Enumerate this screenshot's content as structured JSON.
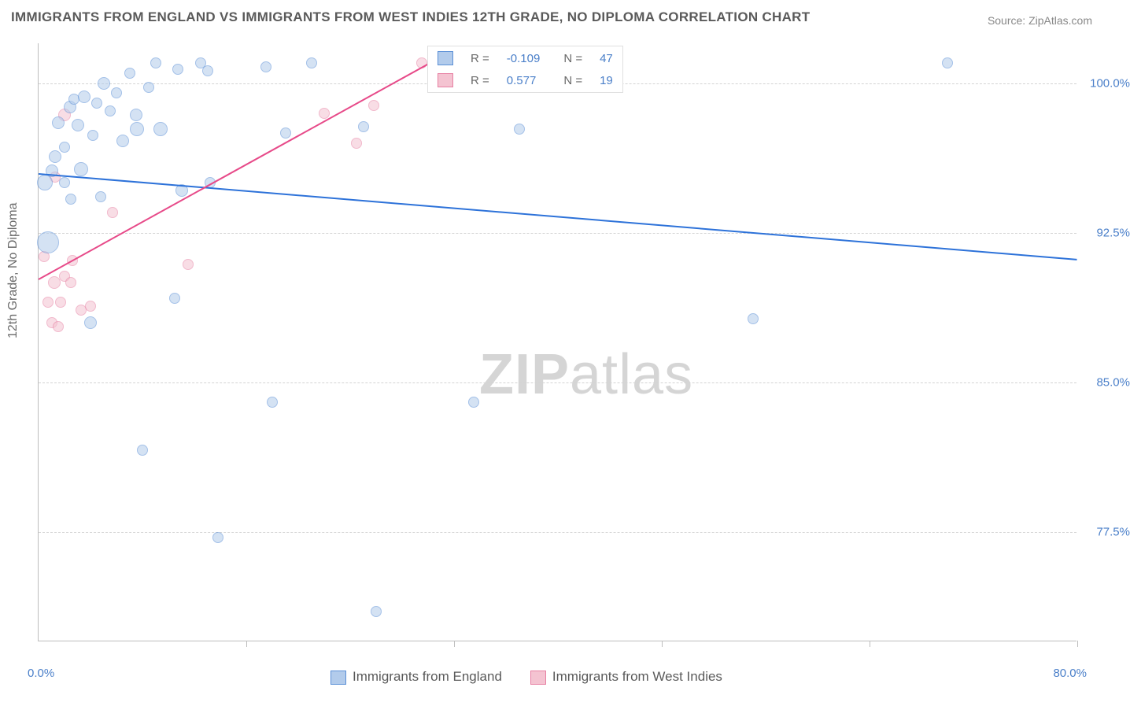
{
  "title": "IMMIGRANTS FROM ENGLAND VS IMMIGRANTS FROM WEST INDIES 12TH GRADE, NO DIPLOMA CORRELATION CHART",
  "source_text": "Source: ZipAtlas.com",
  "ylabel": "12th Grade, No Diploma",
  "watermark": {
    "bold": "ZIP",
    "rest": "atlas"
  },
  "chart": {
    "type": "scatter",
    "background_color": "#ffffff",
    "grid_color": "#d4d4d4",
    "axis_color": "#bdbdbd",
    "xlim": [
      0,
      80
    ],
    "ylim": [
      72,
      102
    ],
    "yticks": [
      77.5,
      85.0,
      92.5,
      100.0
    ],
    "ytick_labels": [
      "77.5%",
      "85.0%",
      "92.5%",
      "100.0%"
    ],
    "xtick_positions": [
      16,
      32,
      48,
      64,
      80
    ],
    "x_start_label": "0.0%",
    "x_end_label": "80.0%",
    "tick_label_color": "#4a7fc9",
    "tick_label_fontsize": 15,
    "title_fontsize": 17,
    "title_color": "#5a5a5a"
  },
  "series": {
    "england": {
      "label": "Immigrants from England",
      "fill_color": "#b2cbeb",
      "stroke_color": "#5a8fd6",
      "fill_opacity": 0.55,
      "marker_radius_base": 7,
      "trend": {
        "y_at_x0": 95.5,
        "y_at_xmax": 91.2,
        "color": "#2d72d9",
        "width": 2
      },
      "R": "-0.109",
      "N": "47",
      "points": [
        {
          "x": 0.5,
          "y": 95.0,
          "r": 10
        },
        {
          "x": 0.7,
          "y": 92.0,
          "r": 14
        },
        {
          "x": 1.0,
          "y": 95.6,
          "r": 8
        },
        {
          "x": 1.3,
          "y": 96.3,
          "r": 8
        },
        {
          "x": 1.5,
          "y": 98.0,
          "r": 8
        },
        {
          "x": 2.0,
          "y": 95.0,
          "r": 7
        },
        {
          "x": 2.0,
          "y": 96.8,
          "r": 7
        },
        {
          "x": 2.4,
          "y": 98.8,
          "r": 8
        },
        {
          "x": 2.5,
          "y": 94.2,
          "r": 7
        },
        {
          "x": 2.7,
          "y": 99.2,
          "r": 7
        },
        {
          "x": 3.0,
          "y": 97.9,
          "r": 8
        },
        {
          "x": 3.3,
          "y": 95.7,
          "r": 9
        },
        {
          "x": 3.5,
          "y": 99.3,
          "r": 8
        },
        {
          "x": 4.0,
          "y": 88.0,
          "r": 8
        },
        {
          "x": 4.2,
          "y": 97.4,
          "r": 7
        },
        {
          "x": 4.5,
          "y": 99.0,
          "r": 7
        },
        {
          "x": 4.8,
          "y": 94.3,
          "r": 7
        },
        {
          "x": 5.0,
          "y": 100.0,
          "r": 8
        },
        {
          "x": 5.5,
          "y": 98.6,
          "r": 7
        },
        {
          "x": 6.0,
          "y": 99.5,
          "r": 7
        },
        {
          "x": 6.5,
          "y": 97.1,
          "r": 8
        },
        {
          "x": 7.0,
          "y": 100.5,
          "r": 7
        },
        {
          "x": 7.5,
          "y": 98.4,
          "r": 8
        },
        {
          "x": 7.6,
          "y": 97.7,
          "r": 9
        },
        {
          "x": 8.0,
          "y": 81.6,
          "r": 7
        },
        {
          "x": 8.5,
          "y": 99.8,
          "r": 7
        },
        {
          "x": 9.0,
          "y": 101.0,
          "r": 7
        },
        {
          "x": 9.4,
          "y": 97.7,
          "r": 9
        },
        {
          "x": 10.5,
          "y": 89.2,
          "r": 7
        },
        {
          "x": 10.7,
          "y": 100.7,
          "r": 7
        },
        {
          "x": 11.0,
          "y": 94.6,
          "r": 8
        },
        {
          "x": 12.5,
          "y": 101.0,
          "r": 7
        },
        {
          "x": 13.0,
          "y": 100.6,
          "r": 7
        },
        {
          "x": 13.2,
          "y": 95.0,
          "r": 7
        },
        {
          "x": 13.8,
          "y": 77.2,
          "r": 7
        },
        {
          "x": 17.5,
          "y": 100.8,
          "r": 7
        },
        {
          "x": 18.0,
          "y": 84.0,
          "r": 7
        },
        {
          "x": 19.0,
          "y": 97.5,
          "r": 7
        },
        {
          "x": 21.0,
          "y": 101.0,
          "r": 7
        },
        {
          "x": 25.0,
          "y": 97.8,
          "r": 7
        },
        {
          "x": 26.0,
          "y": 73.5,
          "r": 7
        },
        {
          "x": 30.5,
          "y": 100.8,
          "r": 7
        },
        {
          "x": 33.5,
          "y": 84.0,
          "r": 7
        },
        {
          "x": 36.3,
          "y": 101.0,
          "r": 7
        },
        {
          "x": 37.0,
          "y": 97.7,
          "r": 7
        },
        {
          "x": 55.0,
          "y": 88.2,
          "r": 7
        },
        {
          "x": 70.0,
          "y": 101.0,
          "r": 7
        }
      ]
    },
    "westindies": {
      "label": "Immigrants from West Indies",
      "fill_color": "#f4c3d1",
      "stroke_color": "#e780a3",
      "fill_opacity": 0.55,
      "marker_radius_base": 7,
      "trend": {
        "y_at_x0": 90.2,
        "y_at_x30": 101.0,
        "color": "#e74a89",
        "width": 2
      },
      "R": "0.577",
      "N": "19",
      "points": [
        {
          "x": 0.4,
          "y": 91.3,
          "r": 7
        },
        {
          "x": 0.7,
          "y": 89.0,
          "r": 7
        },
        {
          "x": 1.0,
          "y": 88.0,
          "r": 7
        },
        {
          "x": 1.2,
          "y": 90.0,
          "r": 8
        },
        {
          "x": 1.3,
          "y": 95.3,
          "r": 7
        },
        {
          "x": 1.5,
          "y": 87.8,
          "r": 7
        },
        {
          "x": 1.7,
          "y": 89.0,
          "r": 7
        },
        {
          "x": 2.0,
          "y": 90.3,
          "r": 7
        },
        {
          "x": 2.0,
          "y": 98.4,
          "r": 8
        },
        {
          "x": 2.5,
          "y": 90.0,
          "r": 7
        },
        {
          "x": 2.6,
          "y": 91.1,
          "r": 7
        },
        {
          "x": 3.3,
          "y": 88.6,
          "r": 7
        },
        {
          "x": 4.0,
          "y": 88.8,
          "r": 7
        },
        {
          "x": 5.7,
          "y": 93.5,
          "r": 7
        },
        {
          "x": 11.5,
          "y": 90.9,
          "r": 7
        },
        {
          "x": 22.0,
          "y": 98.5,
          "r": 7
        },
        {
          "x": 24.5,
          "y": 97.0,
          "r": 7
        },
        {
          "x": 25.8,
          "y": 98.9,
          "r": 7
        },
        {
          "x": 29.5,
          "y": 101.0,
          "r": 7
        }
      ]
    }
  },
  "legend_top": {
    "bg": "#ffffff",
    "border": "#e0e0e0",
    "rows": [
      {
        "swatch_fill": "#b2cbeb",
        "swatch_stroke": "#5a8fd6",
        "R": "-0.109",
        "N": "47"
      },
      {
        "swatch_fill": "#f4c3d1",
        "swatch_stroke": "#e780a3",
        "R": "0.577",
        "N": "19"
      }
    ]
  },
  "legend_bottom": [
    {
      "swatch_fill": "#b2cbeb",
      "swatch_stroke": "#5a8fd6",
      "label": "Immigrants from England"
    },
    {
      "swatch_fill": "#f4c3d1",
      "swatch_stroke": "#e780a3",
      "label": "Immigrants from West Indies"
    }
  ]
}
